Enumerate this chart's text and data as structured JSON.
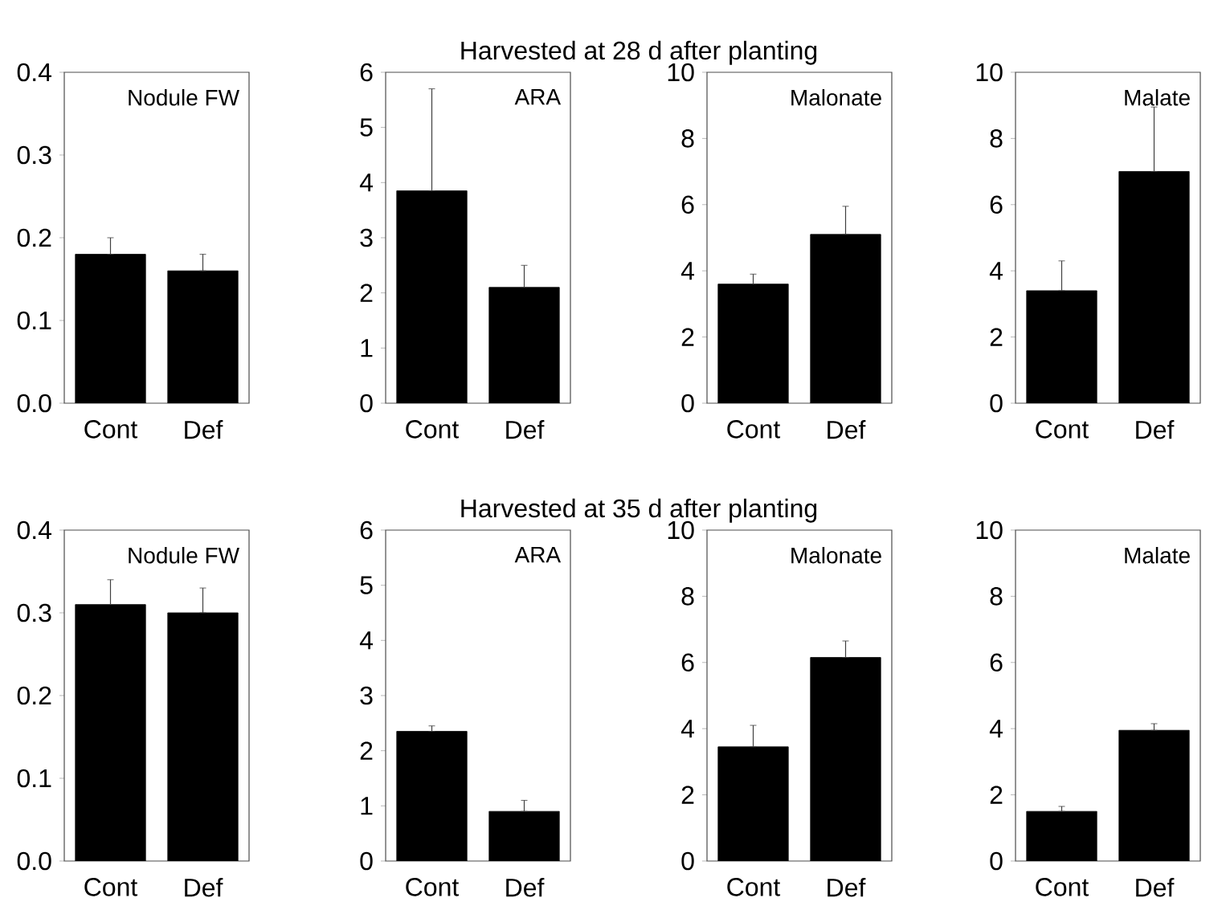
{
  "chart_data": [
    {
      "type": "bar",
      "title": "Nodule FW",
      "annotations": [
        "Harvested at 28 d after planting"
      ],
      "categories": [
        "Cont",
        "Def"
      ],
      "values": [
        0.18,
        0.16
      ],
      "errors": [
        [
          0.18,
          0.2
        ],
        [
          0.16,
          0.18
        ]
      ],
      "color": "#000000",
      "ylim": [
        0,
        0.4
      ],
      "yticks": [
        {
          "value": 0,
          "label": "0.0"
        },
        0.1,
        0.2,
        0.3,
        0.4
      ]
    },
    {
      "type": "bar",
      "title": "ARA",
      "categories": [
        "Cont",
        "Def"
      ],
      "values": [
        3.85,
        2.1
      ],
      "errors": [
        [
          3.85,
          5.7
        ],
        [
          2.1,
          2.5
        ]
      ],
      "color": "#000000",
      "ylim": [
        0,
        6
      ],
      "yticks": [
        0,
        1,
        2,
        3,
        4,
        5,
        6
      ]
    },
    {
      "type": "bar",
      "title": "Malonate",
      "categories": [
        "Cont",
        "Def"
      ],
      "values": [
        3.6,
        5.1
      ],
      "errors": [
        [
          3.6,
          3.9
        ],
        [
          5.1,
          5.95
        ]
      ],
      "color": "#000000",
      "ylim": [
        0,
        10
      ],
      "yticks": [
        0,
        2,
        4,
        6,
        8,
        10
      ]
    },
    {
      "type": "bar",
      "title": "Malate",
      "categories": [
        "Cont",
        "Def"
      ],
      "values": [
        3.4,
        7.0
      ],
      "errors": [
        [
          3.4,
          4.3
        ],
        [
          7.0,
          8.95
        ]
      ],
      "color": "#000000",
      "ylim": [
        0,
        10
      ],
      "yticks": [
        0,
        2,
        4,
        6,
        8,
        10
      ]
    },
    {
      "type": "bar",
      "title": "Nodule FW",
      "annotations": [
        "Harvested at 35 d after planting"
      ],
      "categories": [
        "Cont",
        "Def"
      ],
      "values": [
        0.31,
        0.3
      ],
      "errors": [
        [
          0.31,
          0.34
        ],
        [
          0.3,
          0.33
        ]
      ],
      "color": "#000000",
      "ylim": [
        0,
        0.4
      ],
      "yticks": [
        {
          "value": 0,
          "label": "0.0"
        },
        0.1,
        0.2,
        0.3,
        0.4
      ]
    },
    {
      "type": "bar",
      "title": "ARA",
      "categories": [
        "Cont",
        "Def"
      ],
      "values": [
        2.35,
        0.9
      ],
      "errors": [
        [
          2.35,
          2.45
        ],
        [
          0.9,
          1.1
        ]
      ],
      "color": "#000000",
      "ylim": [
        0,
        6
      ],
      "yticks": [
        0,
        1,
        2,
        3,
        4,
        5,
        6
      ]
    },
    {
      "type": "bar",
      "title": "Malonate",
      "categories": [
        "Cont",
        "Def"
      ],
      "values": [
        3.45,
        6.15
      ],
      "errors": [
        [
          3.45,
          4.1
        ],
        [
          6.15,
          6.65
        ]
      ],
      "color": "#000000",
      "ylim": [
        0,
        10
      ],
      "yticks": [
        0,
        2,
        4,
        6,
        8,
        10
      ]
    },
    {
      "type": "bar",
      "title": "Malate",
      "categories": [
        "Cont",
        "Def"
      ],
      "values": [
        1.5,
        3.95
      ],
      "errors": [
        [
          1.5,
          1.65
        ],
        [
          3.95,
          4.15
        ]
      ],
      "color": "#000000",
      "ylim": [
        0,
        10
      ],
      "yticks": [
        0,
        2,
        4,
        6,
        8,
        10
      ]
    }
  ]
}
